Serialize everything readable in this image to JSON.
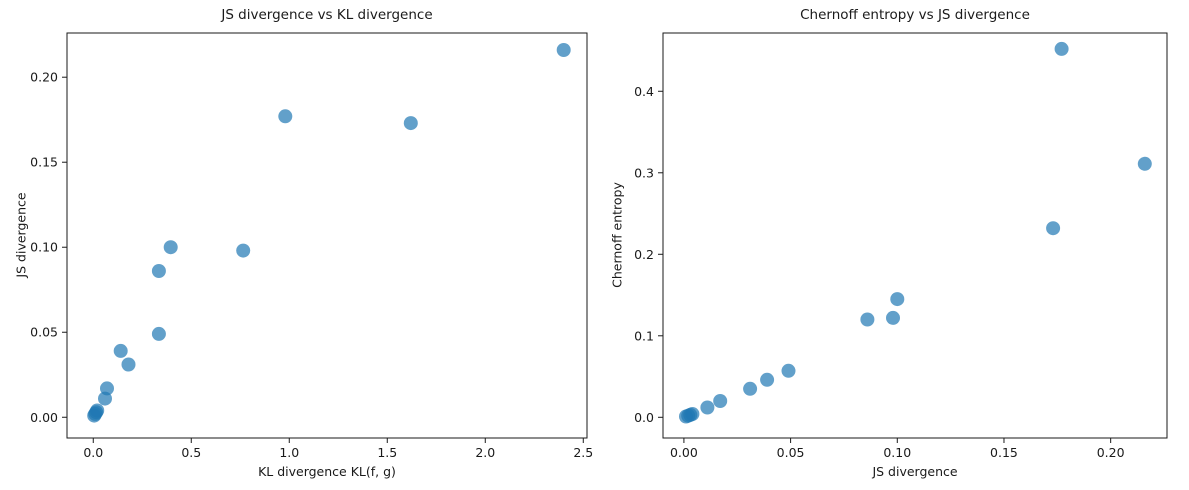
{
  "figure": {
    "background": "#ffffff",
    "marker_color": "#1f77b4",
    "marker_opacity": 0.7,
    "marker_radius": 7,
    "spine_color": "#1a1a1a",
    "text_color": "#1a1a1a"
  },
  "chart_data": [
    {
      "type": "scatter",
      "title": "JS divergence vs KL divergence",
      "xlabel": "KL divergence KL(f, g)",
      "ylabel": "JS divergence",
      "xlim": [
        -0.134,
        2.519
      ],
      "ylim": [
        -0.0122,
        0.226
      ],
      "grid": false,
      "legend": "none",
      "xticks": [
        0.0,
        0.5,
        1.0,
        1.5,
        2.0,
        2.5
      ],
      "xtick_labels": [
        "0.0",
        "0.5",
        "1.0",
        "1.5",
        "2.0",
        "2.5"
      ],
      "yticks": [
        0.0,
        0.05,
        0.1,
        0.15,
        0.2
      ],
      "ytick_labels": [
        "0.00",
        "0.05",
        "0.10",
        "0.15",
        "0.20"
      ],
      "points": [
        [
          0.005,
          0.001
        ],
        [
          0.01,
          0.002
        ],
        [
          0.015,
          0.003
        ],
        [
          0.02,
          0.004
        ],
        [
          0.06,
          0.011
        ],
        [
          0.07,
          0.017
        ],
        [
          0.14,
          0.039
        ],
        [
          0.18,
          0.031
        ],
        [
          0.335,
          0.049
        ],
        [
          0.335,
          0.086
        ],
        [
          0.395,
          0.1
        ],
        [
          0.765,
          0.098
        ],
        [
          0.98,
          0.177
        ],
        [
          1.62,
          0.173
        ],
        [
          2.4,
          0.216
        ]
      ]
    },
    {
      "type": "scatter",
      "title": "Chernoff entropy vs JS divergence",
      "xlabel": "JS divergence",
      "ylabel": "Chernoff entropy",
      "xlim": [
        -0.0098,
        0.2264
      ],
      "ylim": [
        -0.0254,
        0.4715
      ],
      "grid": false,
      "legend": "none",
      "xticks": [
        0.0,
        0.05,
        0.1,
        0.15,
        0.2
      ],
      "xtick_labels": [
        "0.00",
        "0.05",
        "0.10",
        "0.15",
        "0.20"
      ],
      "yticks": [
        0.0,
        0.1,
        0.2,
        0.3,
        0.4
      ],
      "ytick_labels": [
        "0.0",
        "0.1",
        "0.2",
        "0.3",
        "0.4"
      ],
      "points": [
        [
          0.001,
          0.001
        ],
        [
          0.002,
          0.002
        ],
        [
          0.003,
          0.003
        ],
        [
          0.004,
          0.004
        ],
        [
          0.011,
          0.012
        ],
        [
          0.017,
          0.02
        ],
        [
          0.039,
          0.046
        ],
        [
          0.031,
          0.035
        ],
        [
          0.049,
          0.057
        ],
        [
          0.086,
          0.12
        ],
        [
          0.1,
          0.145
        ],
        [
          0.098,
          0.122
        ],
        [
          0.177,
          0.452
        ],
        [
          0.173,
          0.232
        ],
        [
          0.216,
          0.311
        ]
      ]
    }
  ]
}
